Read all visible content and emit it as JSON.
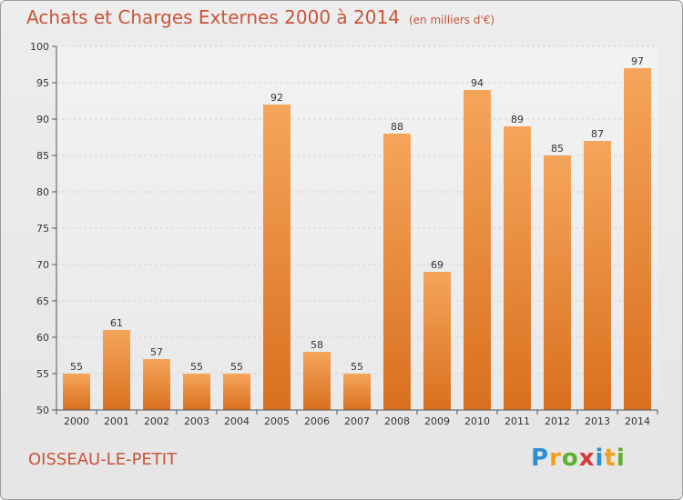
{
  "header": {
    "title": "Achats et Charges Externes 2000 à 2014",
    "unit": "(en milliers d'€)"
  },
  "footer": {
    "commune": "OISSEAU-LE-PETIT",
    "brand": "Proxiti",
    "brand_colors": [
      "#2b8fd6",
      "#f0a020",
      "#5bb030",
      "#d63a3a",
      "#2b8fd6",
      "#f0a020",
      "#5bb030"
    ]
  },
  "colors": {
    "bar_top": "#f5a55a",
    "bar_bottom": "#d96f1e",
    "text_accent": "#c8553a"
  },
  "chart_data": {
    "type": "bar",
    "categories": [
      "2000",
      "2001",
      "2002",
      "2003",
      "2004",
      "2005",
      "2006",
      "2007",
      "2008",
      "2009",
      "2010",
      "2011",
      "2012",
      "2013",
      "2014"
    ],
    "values": [
      55,
      61,
      57,
      55,
      55,
      92,
      58,
      55,
      88,
      69,
      94,
      89,
      85,
      87,
      97
    ],
    "title": "Achats et Charges Externes 2000 à 2014",
    "xlabel": "",
    "ylabel": "",
    "ylim": [
      50,
      100
    ],
    "yticks": [
      50,
      55,
      60,
      65,
      70,
      75,
      80,
      85,
      90,
      95,
      100
    ],
    "grid": true,
    "legend": "none"
  }
}
